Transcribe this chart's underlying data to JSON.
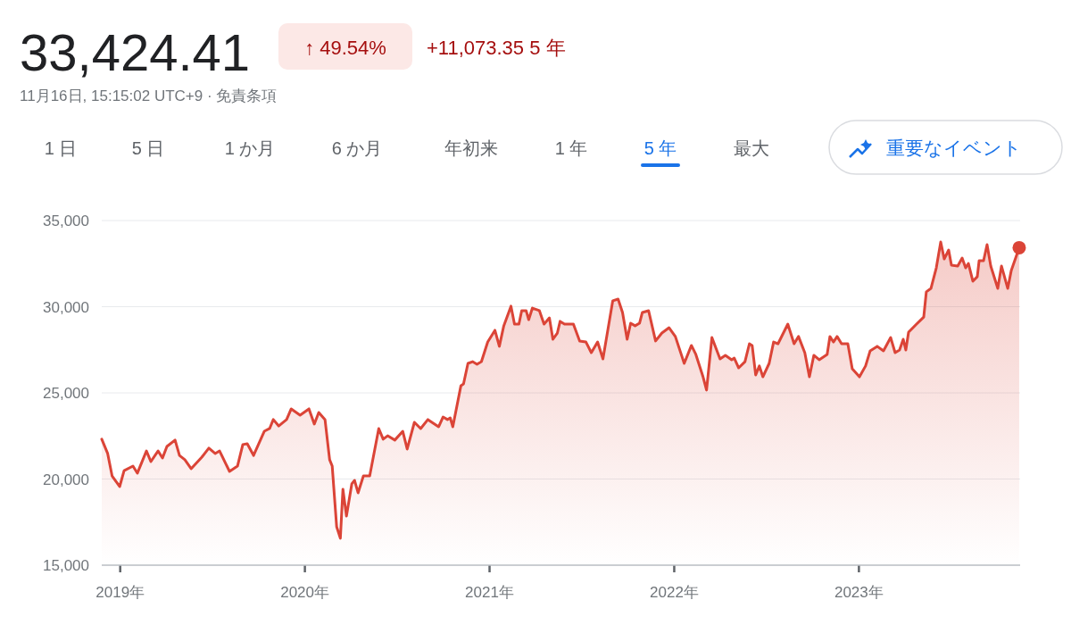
{
  "chart_data": {
    "type": "area",
    "title": "33,424.41",
    "annotations": [
      "↑ 49.54%",
      "+11,073.35 5 年",
      "11月16日, 15:15:02 UTC+9 · 免責条項",
      "1 日",
      "5 日",
      "1 か月",
      "6 か月",
      "年初来",
      "1 年",
      "5 年",
      "最大",
      "重要なイベント"
    ],
    "xlim": [
      2018.9,
      2023.873
    ],
    "xticks": [
      {
        "value": 2019,
        "label": "2019年"
      },
      {
        "value": 2020,
        "label": "2020年"
      },
      {
        "value": 2021,
        "label": "2021年"
      },
      {
        "value": 2022,
        "label": "2022年"
      },
      {
        "value": 2023,
        "label": "2023年"
      }
    ],
    "ylim": [
      15000,
      35000
    ],
    "yticks": [
      {
        "value": 15000,
        "label": "15,000"
      },
      {
        "value": 20000,
        "label": "20,000"
      },
      {
        "value": 25000,
        "label": "25,000"
      },
      {
        "value": 30000,
        "label": "30,000"
      },
      {
        "value": 35000,
        "label": "35,000"
      }
    ],
    "grid": "y",
    "x": [
      2018.9,
      2018.932,
      2018.956,
      2018.997,
      2019.021,
      2019.069,
      2019.093,
      2019.142,
      2019.166,
      2019.205,
      2019.229,
      2019.253,
      2019.297,
      2019.321,
      2019.35,
      2019.384,
      2019.442,
      2019.48,
      2019.514,
      2019.538,
      2019.592,
      2019.635,
      2019.664,
      2019.688,
      2019.722,
      2019.78,
      2019.809,
      2019.829,
      2019.858,
      2019.901,
      2019.926,
      2019.974,
      2020.022,
      2020.051,
      2020.075,
      2020.109,
      2020.134,
      2020.148,
      2020.172,
      2020.192,
      2020.206,
      2020.225,
      2020.254,
      2020.269,
      2020.288,
      2020.317,
      2020.351,
      2020.4,
      2020.424,
      2020.448,
      2020.487,
      2020.53,
      2020.554,
      2020.593,
      2020.627,
      2020.666,
      2020.724,
      2020.748,
      2020.772,
      2020.787,
      2020.801,
      2020.845,
      2020.859,
      2020.883,
      2020.908,
      2020.932,
      2020.956,
      2020.99,
      2021.029,
      2021.053,
      2021.077,
      2021.116,
      2021.135,
      2021.159,
      2021.174,
      2021.198,
      2021.212,
      2021.232,
      2021.27,
      2021.295,
      2021.324,
      2021.343,
      2021.367,
      2021.382,
      2021.406,
      2021.454,
      2021.488,
      2021.522,
      2021.551,
      2021.585,
      2021.614,
      2021.667,
      2021.696,
      2021.72,
      2021.745,
      2021.764,
      2021.788,
      2021.812,
      2021.827,
      2021.861,
      2021.899,
      2021.933,
      2021.972,
      2022.006,
      2022.054,
      2022.093,
      2022.117,
      2022.156,
      2022.175,
      2022.204,
      2022.248,
      2022.277,
      2022.311,
      2022.325,
      2022.349,
      2022.383,
      2022.407,
      2022.422,
      2022.441,
      2022.461,
      2022.48,
      2022.514,
      2022.538,
      2022.562,
      2022.615,
      2022.649,
      2022.673,
      2022.707,
      2022.732,
      2022.756,
      2022.785,
      2022.828,
      2022.843,
      2022.862,
      2022.882,
      2022.906,
      2022.94,
      2022.964,
      2023.003,
      2023.036,
      2023.061,
      2023.099,
      2023.133,
      2023.172,
      2023.196,
      2023.22,
      2023.24,
      2023.254,
      2023.269,
      2023.312,
      2023.351,
      2023.365,
      2023.39,
      2023.419,
      2023.443,
      2023.462,
      2023.486,
      2023.501,
      2023.535,
      2023.559,
      2023.578,
      2023.593,
      2023.617,
      2023.641,
      2023.651,
      2023.675,
      2023.694,
      2023.714,
      2023.752,
      2023.772,
      2023.806,
      2023.825,
      2023.868
    ],
    "series": [
      {
        "color": "#db4437",
        "values": [
          22310,
          21480,
          20180,
          19560,
          20490,
          20750,
          20340,
          21630,
          21010,
          21630,
          21220,
          21890,
          22260,
          21370,
          21120,
          20600,
          21270,
          21790,
          21480,
          21630,
          20440,
          20750,
          22000,
          22050,
          21370,
          22770,
          22930,
          23450,
          23080,
          23450,
          24070,
          23710,
          24070,
          23190,
          23860,
          23450,
          21120,
          20750,
          17230,
          16560,
          19410,
          17850,
          19720,
          19920,
          19200,
          20180,
          20180,
          22930,
          22310,
          22510,
          22260,
          22770,
          21740,
          23290,
          22930,
          23450,
          23030,
          23600,
          23450,
          23550,
          23030,
          25420,
          25520,
          26710,
          26810,
          26660,
          26810,
          27950,
          28630,
          27700,
          28890,
          30030,
          28990,
          28990,
          29770,
          29770,
          29250,
          29920,
          29770,
          28990,
          29350,
          28110,
          28470,
          29150,
          28990,
          28990,
          28010,
          27950,
          27330,
          27950,
          26970,
          30340,
          30440,
          29660,
          28110,
          29040,
          28890,
          29040,
          29660,
          29770,
          28010,
          28470,
          28780,
          28270,
          26710,
          27750,
          27230,
          25930,
          25160,
          28210,
          26970,
          27180,
          26920,
          27020,
          26450,
          26810,
          27850,
          27750,
          26040,
          26560,
          25930,
          26710,
          27950,
          27850,
          28990,
          27850,
          28270,
          27330,
          25930,
          27180,
          26920,
          27230,
          28270,
          27950,
          28270,
          27850,
          27850,
          26400,
          25930,
          26560,
          27440,
          27700,
          27440,
          28210,
          27330,
          27490,
          28110,
          27490,
          28520,
          28990,
          29400,
          30860,
          31060,
          32250,
          33760,
          32770,
          33290,
          32410,
          32360,
          32820,
          32250,
          32510,
          31480,
          31740,
          32670,
          32670,
          33600,
          32360,
          31060,
          32360,
          31060,
          32100,
          33424.41
        ]
      }
    ]
  }
}
